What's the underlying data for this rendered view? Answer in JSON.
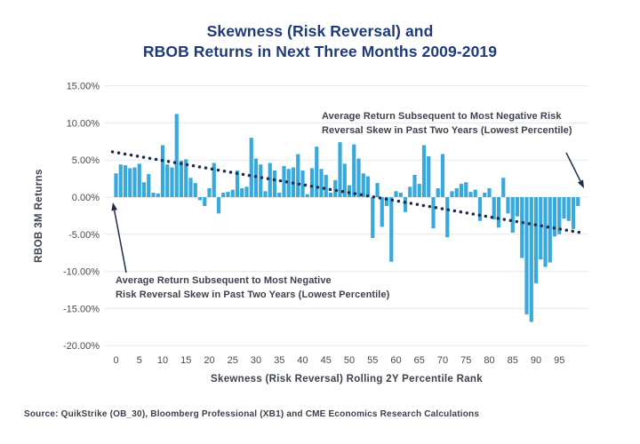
{
  "title": {
    "line1": "Skewness (Risk Reversal) and",
    "line2": "RBOB Returns in Next Three Months 2009-2019"
  },
  "chart_data": {
    "type": "bar",
    "title": "Skewness (Risk Reversal) and RBOB Returns in Next Three Months 2009-2019",
    "xlabel": "Skewness (Risk Reversal) Rolling 2Y Percentile Rank",
    "ylabel": "RBOB 3M Returns",
    "ylim": [
      -20,
      15
    ],
    "grid": true,
    "x_ticks": [
      0,
      5,
      10,
      15,
      20,
      25,
      30,
      35,
      40,
      45,
      50,
      55,
      60,
      65,
      70,
      75,
      80,
      85,
      90,
      95
    ],
    "y_ticks": [
      15,
      10,
      5,
      0,
      -5,
      -10,
      -15,
      -20
    ],
    "y_tick_labels": [
      "15.00%",
      "10.00%",
      "5.00%",
      "0.00%",
      "-5.00%",
      "-10.00%",
      "-15.00%",
      "-20.00%"
    ],
    "x": [
      0,
      1,
      2,
      3,
      4,
      5,
      6,
      7,
      8,
      9,
      10,
      11,
      12,
      13,
      14,
      15,
      16,
      17,
      18,
      19,
      20,
      21,
      22,
      23,
      24,
      25,
      26,
      27,
      28,
      29,
      30,
      31,
      32,
      33,
      34,
      35,
      36,
      37,
      38,
      39,
      40,
      41,
      42,
      43,
      44,
      45,
      46,
      47,
      48,
      49,
      50,
      51,
      52,
      53,
      54,
      55,
      56,
      57,
      58,
      59,
      60,
      61,
      62,
      63,
      64,
      65,
      66,
      67,
      68,
      69,
      70,
      71,
      72,
      73,
      74,
      75,
      76,
      77,
      78,
      79,
      80,
      81,
      82,
      83,
      84,
      85,
      86,
      87,
      88,
      89,
      90,
      91,
      92,
      93,
      94,
      95,
      96,
      97,
      98,
      99
    ],
    "values": [
      3.2,
      4.4,
      4.3,
      3.9,
      4.0,
      4.5,
      2.0,
      3.1,
      0.6,
      0.5,
      7.0,
      4.4,
      4.0,
      11.2,
      4.9,
      5.1,
      2.6,
      1.9,
      -0.4,
      -1.2,
      1.2,
      4.6,
      -2.2,
      0.6,
      0.7,
      1.0,
      3.6,
      1.2,
      1.4,
      8.0,
      5.2,
      4.4,
      0.8,
      4.6,
      3.6,
      0.6,
      4.2,
      3.8,
      4.0,
      5.8,
      3.6,
      0.4,
      3.9,
      6.8,
      3.8,
      3.0,
      0.6,
      2.3,
      7.4,
      4.5,
      1.6,
      7.1,
      5.2,
      3.2,
      2.8,
      -5.5,
      1.9,
      -4.0,
      -1.2,
      -8.7,
      0.8,
      0.6,
      -2.0,
      1.4,
      3.0,
      1.8,
      7.0,
      5.5,
      -4.2,
      1.2,
      5.8,
      -5.4,
      0.8,
      1.2,
      1.8,
      2.0,
      0.7,
      1.0,
      -3.2,
      0.6,
      1.2,
      -3.0,
      -4.1,
      2.6,
      -2.2,
      -4.8,
      -2.6,
      -8.2,
      -15.8,
      -16.8,
      -11.6,
      -8.4,
      -9.4,
      -8.8,
      -5.3,
      -5.0,
      -2.9,
      -3.2,
      -4.3,
      -1.2
    ],
    "trendline": {
      "style": "dotted",
      "start_value": 6.1,
      "end_value": -4.8
    },
    "legend_position": "none",
    "bar_color": "#39a9dc",
    "trend_color": "#1c2c4c",
    "grid_color": "#e7e8ea",
    "tick_color": "#454b54"
  },
  "annotations": {
    "right": {
      "line1": "Average Return Subsequent to Most Negative Risk",
      "line2": "Reversal Skew in Past Two Years (Lowest Percentile)"
    },
    "left": {
      "line1": "Average Return Subsequent to Most Negative",
      "line2": "Risk Reversal Skew in Past Two Years (Lowest Percentile)"
    }
  },
  "source": "Source: QuikStrike (OB_30), Bloomberg Professional (XB1) and CME Economics Research Calculations",
  "colors": {
    "title": "#1f3a7a",
    "bar": "#39a9dc",
    "trend_arrow": "#1c2c4c",
    "text": "#3d434d"
  }
}
